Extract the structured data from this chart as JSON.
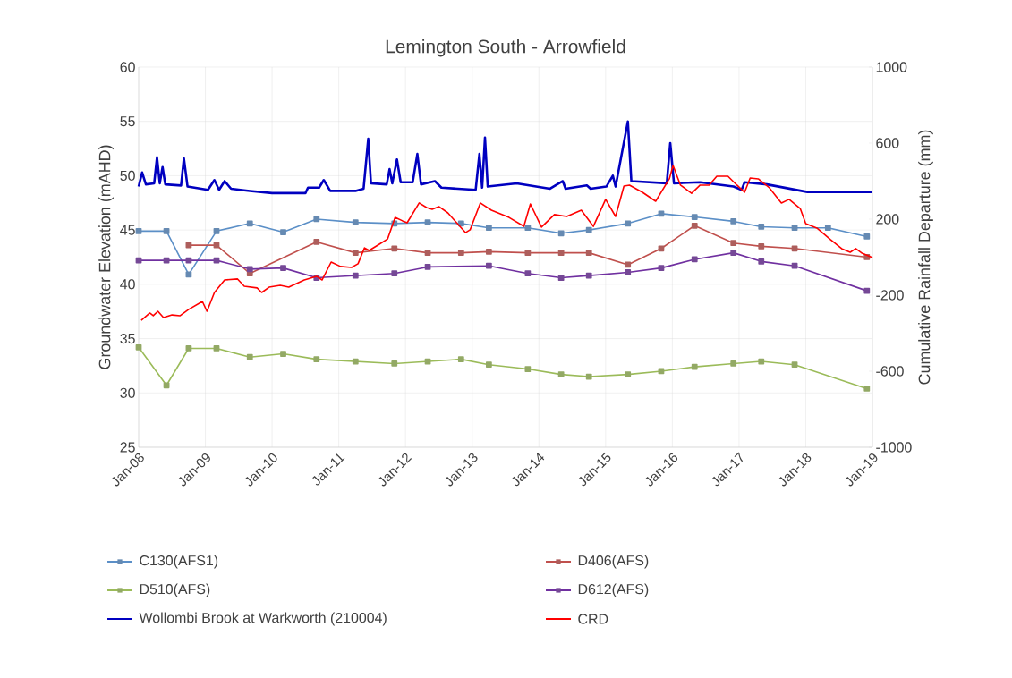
{
  "chart_data": {
    "type": "line",
    "title": "Lemington South - Arrowfield",
    "ylabel": "Groundwater Elevation (mAHD)",
    "y2label": "Cumulative Rainfall Departure (mm)",
    "xlim": [
      "2008-01",
      "2019-01"
    ],
    "xticks": [
      {
        "value": "2008-01",
        "label": "Jan-08"
      },
      {
        "value": "2009-01",
        "label": "Jan-09"
      },
      {
        "value": "2010-01",
        "label": "Jan-10"
      },
      {
        "value": "2011-01",
        "label": "Jan-11"
      },
      {
        "value": "2012-01",
        "label": "Jan-12"
      },
      {
        "value": "2013-01",
        "label": "Jan-13"
      },
      {
        "value": "2014-01",
        "label": "Jan-14"
      },
      {
        "value": "2015-01",
        "label": "Jan-15"
      },
      {
        "value": "2016-01",
        "label": "Jan-16"
      },
      {
        "value": "2017-01",
        "label": "Jan-17"
      },
      {
        "value": "2018-01",
        "label": "Jan-18"
      },
      {
        "value": "2019-01",
        "label": "Jan-19"
      }
    ],
    "ylim": [
      25,
      60
    ],
    "yticks": [
      25,
      30,
      35,
      40,
      45,
      50,
      55,
      60
    ],
    "y2lim": [
      -1000,
      1000
    ],
    "y2ticks": [
      -1000,
      -600,
      -200,
      200,
      600,
      1000
    ],
    "grid": true,
    "legend": "bottom",
    "series": [
      {
        "name": "C130(AFS1)",
        "color": "#5b8fc7",
        "marker": "square",
        "x": [
          "2008-01",
          "2008-06",
          "2008-10",
          "2009-03",
          "2009-09",
          "2010-03",
          "2010-09",
          "2011-04",
          "2011-11",
          "2012-05",
          "2012-11",
          "2013-04",
          "2013-11",
          "2014-05",
          "2014-10",
          "2015-05",
          "2015-11",
          "2016-05",
          "2016-12",
          "2017-05",
          "2017-11",
          "2018-05",
          "2018-12"
        ],
        "values": [
          44.9,
          44.9,
          40.9,
          44.9,
          45.6,
          44.8,
          46.0,
          45.7,
          45.6,
          45.7,
          45.6,
          45.2,
          45.2,
          44.7,
          45.0,
          45.6,
          46.5,
          46.2,
          45.8,
          45.3,
          45.2,
          45.2,
          44.4
        ]
      },
      {
        "name": "D406(AFS)",
        "color": "#c0504d",
        "marker": "square",
        "x": [
          "2008-10",
          "2009-03",
          "2009-09",
          "2010-09",
          "2011-04",
          "2011-11",
          "2012-05",
          "2012-11",
          "2013-04",
          "2013-11",
          "2014-05",
          "2014-10",
          "2015-05",
          "2015-11",
          "2016-05",
          "2016-12",
          "2017-05",
          "2017-11",
          "2018-12"
        ],
        "values": [
          43.6,
          43.6,
          41.0,
          43.9,
          42.9,
          43.3,
          42.9,
          42.9,
          43.0,
          42.9,
          42.9,
          42.9,
          41.8,
          43.3,
          45.4,
          43.8,
          43.5,
          43.3,
          42.5
        ]
      },
      {
        "name": "D510(AFS)",
        "color": "#9bbb59",
        "marker": "square",
        "x": [
          "2008-01",
          "2008-06",
          "2008-10",
          "2009-03",
          "2009-09",
          "2010-03",
          "2010-09",
          "2011-04",
          "2011-11",
          "2012-05",
          "2012-11",
          "2013-04",
          "2013-11",
          "2014-05",
          "2014-10",
          "2015-05",
          "2015-11",
          "2016-05",
          "2016-12",
          "2017-05",
          "2017-11",
          "2018-12"
        ],
        "values": [
          34.2,
          30.7,
          34.1,
          34.1,
          33.3,
          33.6,
          33.1,
          32.9,
          32.7,
          32.9,
          33.1,
          32.6,
          32.2,
          31.7,
          31.5,
          31.7,
          32.0,
          32.4,
          32.7,
          32.9,
          32.6,
          30.4
        ]
      },
      {
        "name": "D612(AFS)",
        "color": "#7030a0",
        "marker": "square",
        "x": [
          "2008-01",
          "2008-06",
          "2008-10",
          "2009-03",
          "2009-09",
          "2010-03",
          "2010-09",
          "2011-04",
          "2011-11",
          "2012-05",
          "2013-04",
          "2013-11",
          "2014-05",
          "2014-10",
          "2015-05",
          "2015-11",
          "2016-05",
          "2016-12",
          "2017-05",
          "2017-11",
          "2018-12"
        ],
        "values": [
          42.2,
          42.2,
          42.2,
          42.2,
          41.4,
          41.5,
          40.6,
          40.8,
          41.0,
          41.6,
          41.7,
          41.0,
          40.6,
          40.8,
          41.1,
          41.5,
          42.3,
          42.9,
          42.1,
          41.7,
          39.4
        ]
      },
      {
        "name": "Wollombi Brook at Warkworth (210004)",
        "color": "#0000c0",
        "marker": "none",
        "x": [
          "2008-01-01",
          "2008-01-20",
          "2008-02-10",
          "2008-03-25",
          "2008-04-10",
          "2008-04-25",
          "2008-05-10",
          "2008-05-25",
          "2008-08-20",
          "2008-09-05",
          "2008-09-25",
          "2009-01-15",
          "2009-02-20",
          "2009-03-15",
          "2009-04-15",
          "2009-05-20",
          "2009-09-01",
          "2010-01-01",
          "2010-07-01",
          "2010-07-15",
          "2010-09-15",
          "2010-10-10",
          "2010-11-15",
          "2011-04-01",
          "2011-05-15",
          "2011-06-10",
          "2011-06-25",
          "2011-09-20",
          "2011-10-05",
          "2011-10-20",
          "2011-11-15",
          "2011-12-05",
          "2012-02-10",
          "2012-03-05",
          "2012-03-25",
          "2012-06-10",
          "2012-07-15",
          "2013-01-20",
          "2013-02-10",
          "2013-02-25",
          "2013-03-10",
          "2013-03-25",
          "2013-09-01",
          "2014-03-01",
          "2014-05-10",
          "2014-05-25",
          "2014-09-20",
          "2014-10-10",
          "2015-01-05",
          "2015-02-10",
          "2015-02-25",
          "2015-05-01",
          "2015-05-20",
          "2015-12-01",
          "2015-12-20",
          "2016-01-10",
          "2016-06-01",
          "2016-12-01",
          "2017-01-15",
          "2017-02-01",
          "2017-06-01",
          "2018-01-10",
          "2019-01-01"
        ],
        "values": [
          49.0,
          50.3,
          49.2,
          49.3,
          51.7,
          49.3,
          50.8,
          49.2,
          49.1,
          51.6,
          49.0,
          48.7,
          49.6,
          48.7,
          49.5,
          48.8,
          48.6,
          48.4,
          48.4,
          48.9,
          48.9,
          49.6,
          48.6,
          48.6,
          48.8,
          53.4,
          49.3,
          49.2,
          50.6,
          49.3,
          51.5,
          49.4,
          49.4,
          52.0,
          49.2,
          49.5,
          48.9,
          48.7,
          52.0,
          48.9,
          53.5,
          49.0,
          49.3,
          48.8,
          49.5,
          48.8,
          49.1,
          48.8,
          49.0,
          50.0,
          49.0,
          55.0,
          49.5,
          49.3,
          53.0,
          49.3,
          49.4,
          49.0,
          48.7,
          49.4,
          49.2,
          48.5,
          48.5
        ]
      },
      {
        "name": "CRD",
        "color": "#ff0000",
        "marker": "none",
        "axis": "y2",
        "x": [
          "2008-01-15",
          "2008-03-01",
          "2008-03-20",
          "2008-04-15",
          "2008-05-15",
          "2008-07-01",
          "2008-08-15",
          "2008-10-01",
          "2008-12-15",
          "2009-01-10",
          "2009-02-20",
          "2009-04-15",
          "2009-06-25",
          "2009-08-01",
          "2009-10-10",
          "2009-11-05",
          "2009-12-15",
          "2010-02-15",
          "2010-04-01",
          "2010-06-25",
          "2010-09-01",
          "2010-10-01",
          "2010-11-20",
          "2011-01-10",
          "2011-03-10",
          "2011-04-15",
          "2011-05-20",
          "2011-06-15",
          "2011-08-10",
          "2011-09-25",
          "2011-11-05",
          "2011-12-15",
          "2012-01-10",
          "2012-03-15",
          "2012-04-25",
          "2012-05-25",
          "2012-07-01",
          "2012-08-20",
          "2012-11-25",
          "2012-12-20",
          "2013-02-15",
          "2013-04-15",
          "2013-07-20",
          "2013-10-10",
          "2013-11-15",
          "2014-01-15",
          "2014-03-25",
          "2014-06-01",
          "2014-08-20",
          "2014-10-25",
          "2015-01-01",
          "2015-02-25",
          "2015-04-10",
          "2015-05-10",
          "2015-07-20",
          "2015-10-01",
          "2015-12-15",
          "2016-01-05",
          "2016-02-15",
          "2016-04-15",
          "2016-06-01",
          "2016-07-20",
          "2016-09-01",
          "2016-11-01",
          "2016-12-20",
          "2017-02-01",
          "2017-03-01",
          "2017-04-15",
          "2017-06-15",
          "2017-08-20",
          "2017-10-01",
          "2017-12-01",
          "2018-01-01",
          "2018-03-01",
          "2018-05-15",
          "2018-07-15",
          "2018-09-01",
          "2018-10-01",
          "2018-11-05",
          "2019-01-01"
        ],
        "values": [
          -332,
          -294,
          -308,
          -285,
          -318,
          -304,
          -308,
          -275,
          -233,
          -285,
          -186,
          -120,
          -115,
          -153,
          -162,
          -186,
          -158,
          -148,
          -158,
          -120,
          -101,
          -120,
          -26,
          -49,
          -54,
          -35,
          49,
          35,
          68,
          96,
          209,
          191,
          181,
          285,
          261,
          252,
          266,
          233,
          129,
          144,
          285,
          247,
          209,
          162,
          280,
          158,
          224,
          214,
          247,
          162,
          304,
          214,
          374,
          379,
          341,
          294,
          412,
          482,
          379,
          336,
          379,
          379,
          426,
          426,
          379,
          341,
          416,
          412,
          365,
          285,
          304,
          256,
          176,
          153,
          92,
          45,
          26,
          45,
          21,
          -2
        ]
      }
    ]
  }
}
